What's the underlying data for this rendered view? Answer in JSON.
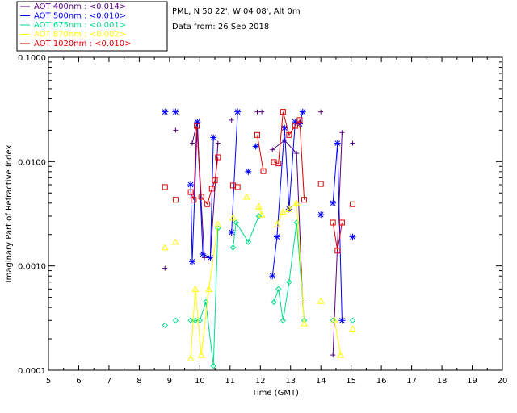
{
  "chart_data": {
    "type": "scatter",
    "station": "PML, N 50 22', W 04 08', Alt 0m",
    "date_line": "Data from: 26 Sep 2018",
    "xlabel": "Time (GMT)",
    "ylabel": "Imaginary Part of Refractive Index",
    "xlim": [
      5,
      20
    ],
    "ylim": [
      0.0001,
      0.1
    ],
    "yscale": "log",
    "x_ticks": [
      "5",
      "6",
      "7",
      "8",
      "9",
      "10",
      "11",
      "12",
      "13",
      "14",
      "15",
      "16",
      "17",
      "18",
      "19",
      "20"
    ],
    "y_ticks": [
      "0.0001",
      "0.0010",
      "0.0100",
      "0.1000"
    ],
    "legend_position": "top-left, outside plot",
    "series": [
      {
        "name": "AOT  400nm : <0.014>",
        "color": "#5a007f",
        "marker": "plus",
        "points": [
          [
            8.85,
            0.00095
          ],
          [
            9.2,
            0.02
          ],
          [
            9.75,
            0.015
          ],
          [
            9.9,
            0.023
          ],
          [
            10.15,
            0.0012
          ],
          [
            10.35,
            0.0012
          ],
          [
            10.6,
            0.015
          ],
          [
            11.05,
            0.025
          ],
          [
            11.9,
            0.03
          ],
          [
            12.05,
            0.03
          ],
          [
            12.4,
            0.013
          ],
          [
            12.8,
            0.016
          ],
          [
            13.2,
            0.012
          ],
          [
            13.4,
            0.00045
          ],
          [
            14.0,
            0.03
          ],
          [
            14.4,
            0.00014
          ],
          [
            14.7,
            0.019
          ],
          [
            15.05,
            0.015
          ]
        ],
        "line_segments": [
          [
            [
              9.75,
              0.015
            ],
            [
              9.9,
              0.023
            ],
            [
              10.15,
              0.0012
            ],
            [
              10.35,
              0.0012
            ],
            [
              10.6,
              0.015
            ]
          ],
          [
            [
              12.4,
              0.013
            ],
            [
              12.8,
              0.016
            ],
            [
              13.2,
              0.012
            ],
            [
              13.4,
              0.00045
            ]
          ],
          [
            [
              14.4,
              0.00014
            ],
            [
              14.7,
              0.019
            ]
          ]
        ]
      },
      {
        "name": "AOT  500nm : <0.010>",
        "color": "#0000ff",
        "marker": "asterisk",
        "points": [
          [
            8.85,
            0.03
          ],
          [
            9.2,
            0.03
          ],
          [
            9.7,
            0.006
          ],
          [
            9.75,
            0.0011
          ],
          [
            9.92,
            0.024
          ],
          [
            10.1,
            0.0013
          ],
          [
            10.35,
            0.0012
          ],
          [
            10.45,
            0.017
          ],
          [
            11.05,
            0.0021
          ],
          [
            11.25,
            0.03
          ],
          [
            11.6,
            0.008
          ],
          [
            11.85,
            0.014
          ],
          [
            12.4,
            0.0008
          ],
          [
            12.55,
            0.0019
          ],
          [
            12.8,
            0.021
          ],
          [
            12.95,
            0.0035
          ],
          [
            13.15,
            0.024
          ],
          [
            13.3,
            0.023
          ],
          [
            13.4,
            0.03
          ],
          [
            14.0,
            0.0031
          ],
          [
            14.4,
            0.004
          ],
          [
            14.55,
            0.015
          ],
          [
            14.7,
            0.0003
          ],
          [
            15.05,
            0.0019
          ]
        ],
        "line_segments": [
          [
            [
              9.7,
              0.006
            ],
            [
              9.75,
              0.0011
            ],
            [
              9.92,
              0.024
            ],
            [
              10.1,
              0.0013
            ],
            [
              10.35,
              0.0012
            ],
            [
              10.45,
              0.017
            ]
          ],
          [
            [
              11.05,
              0.0021
            ],
            [
              11.25,
              0.03
            ]
          ],
          [
            [
              12.4,
              0.0008
            ],
            [
              12.55,
              0.0019
            ],
            [
              12.8,
              0.021
            ],
            [
              12.95,
              0.0035
            ],
            [
              13.15,
              0.024
            ],
            [
              13.3,
              0.023
            ],
            [
              13.4,
              0.03
            ]
          ],
          [
            [
              14.4,
              0.004
            ],
            [
              14.55,
              0.015
            ],
            [
              14.7,
              0.0003
            ]
          ]
        ]
      },
      {
        "name": "AOT  675nm : <0.001>",
        "color": "#00dd88",
        "marker": "diamond",
        "points": [
          [
            8.85,
            0.00027
          ],
          [
            9.2,
            0.0003
          ],
          [
            9.7,
            0.0003
          ],
          [
            9.85,
            0.0003
          ],
          [
            10.0,
            0.0003
          ],
          [
            10.2,
            0.00045
          ],
          [
            10.45,
            0.00011
          ],
          [
            10.6,
            0.0023
          ],
          [
            11.1,
            0.0015
          ],
          [
            11.2,
            0.0026
          ],
          [
            11.6,
            0.0017
          ],
          [
            11.95,
            0.003
          ],
          [
            12.45,
            0.00045
          ],
          [
            12.6,
            0.0006
          ],
          [
            12.75,
            0.0003
          ],
          [
            12.95,
            0.0007
          ],
          [
            13.2,
            0.0026
          ],
          [
            13.45,
            0.0003
          ],
          [
            14.4,
            0.0003
          ],
          [
            15.05,
            0.0003
          ]
        ],
        "line_segments": [
          [
            [
              9.7,
              0.0003
            ],
            [
              9.85,
              0.0003
            ],
            [
              10.0,
              0.0003
            ],
            [
              10.2,
              0.00045
            ],
            [
              10.45,
              0.00011
            ],
            [
              10.6,
              0.0023
            ]
          ],
          [
            [
              11.1,
              0.0015
            ],
            [
              11.2,
              0.0026
            ],
            [
              11.6,
              0.0017
            ],
            [
              11.95,
              0.003
            ]
          ],
          [
            [
              12.45,
              0.00045
            ],
            [
              12.6,
              0.0006
            ],
            [
              12.75,
              0.0003
            ],
            [
              12.95,
              0.0007
            ],
            [
              13.2,
              0.0026
            ],
            [
              13.45,
              0.0003
            ]
          ]
        ]
      },
      {
        "name": "AOT  870nm : <0.002>",
        "color": "#ffff00",
        "marker": "triangle",
        "points": [
          [
            8.85,
            0.0015
          ],
          [
            9.2,
            0.0017
          ],
          [
            9.7,
            0.00013
          ],
          [
            9.85,
            0.0006
          ],
          [
            10.05,
            0.00014
          ],
          [
            10.3,
            0.0006
          ],
          [
            10.6,
            0.0025
          ],
          [
            11.1,
            0.0029
          ],
          [
            11.55,
            0.0046
          ],
          [
            11.95,
            0.0037
          ],
          [
            12.05,
            0.0031
          ],
          [
            12.55,
            0.0025
          ],
          [
            12.75,
            0.0033
          ],
          [
            12.95,
            0.0035
          ],
          [
            13.2,
            0.004
          ],
          [
            13.45,
            0.00028
          ],
          [
            14.0,
            0.00046
          ],
          [
            14.45,
            0.0003
          ],
          [
            14.65,
            0.00014
          ],
          [
            15.05,
            0.00025
          ]
        ],
        "line_segments": [
          [
            [
              9.7,
              0.00013
            ],
            [
              9.85,
              0.0006
            ],
            [
              10.05,
              0.00014
            ],
            [
              10.3,
              0.0006
            ],
            [
              10.6,
              0.0025
            ]
          ],
          [
            [
              11.95,
              0.0037
            ],
            [
              12.05,
              0.0031
            ]
          ],
          [
            [
              12.55,
              0.0025
            ],
            [
              12.75,
              0.0033
            ],
            [
              12.95,
              0.0035
            ],
            [
              13.2,
              0.004
            ],
            [
              13.45,
              0.00028
            ]
          ],
          [
            [
              14.45,
              0.0003
            ],
            [
              14.65,
              0.00014
            ]
          ]
        ]
      },
      {
        "name": "AOT 1020nm : <0.010>",
        "color": "#dd0000",
        "marker": "square",
        "points": [
          [
            8.85,
            0.0057
          ],
          [
            9.2,
            0.0043
          ],
          [
            9.7,
            0.0051
          ],
          [
            9.8,
            0.0043
          ],
          [
            9.9,
            0.022
          ],
          [
            10.05,
            0.0046
          ],
          [
            10.25,
            0.0039
          ],
          [
            10.4,
            0.0055
          ],
          [
            10.5,
            0.0066
          ],
          [
            10.6,
            0.011
          ],
          [
            11.1,
            0.0059
          ],
          [
            11.25,
            0.0057
          ],
          [
            11.9,
            0.018
          ],
          [
            12.1,
            0.0081
          ],
          [
            12.45,
            0.0099
          ],
          [
            12.6,
            0.0096
          ],
          [
            12.75,
            0.03
          ],
          [
            12.95,
            0.018
          ],
          [
            13.15,
            0.022
          ],
          [
            13.3,
            0.025
          ],
          [
            13.45,
            0.0043
          ],
          [
            14.0,
            0.0061
          ],
          [
            14.4,
            0.0026
          ],
          [
            14.55,
            0.0014
          ],
          [
            14.7,
            0.0026
          ],
          [
            15.05,
            0.0039
          ]
        ],
        "line_segments": [
          [
            [
              9.7,
              0.0051
            ],
            [
              9.8,
              0.0043
            ],
            [
              9.9,
              0.022
            ],
            [
              10.05,
              0.0046
            ],
            [
              10.25,
              0.0039
            ],
            [
              10.4,
              0.0055
            ],
            [
              10.5,
              0.0066
            ],
            [
              10.6,
              0.011
            ]
          ],
          [
            [
              11.9,
              0.018
            ],
            [
              12.1,
              0.0081
            ]
          ],
          [
            [
              12.45,
              0.0099
            ],
            [
              12.6,
              0.0096
            ],
            [
              12.75,
              0.03
            ],
            [
              12.95,
              0.018
            ],
            [
              13.15,
              0.022
            ],
            [
              13.3,
              0.025
            ],
            [
              13.45,
              0.0043
            ]
          ],
          [
            [
              14.4,
              0.0026
            ],
            [
              14.55,
              0.0014
            ],
            [
              14.7,
              0.0026
            ]
          ]
        ]
      }
    ]
  }
}
